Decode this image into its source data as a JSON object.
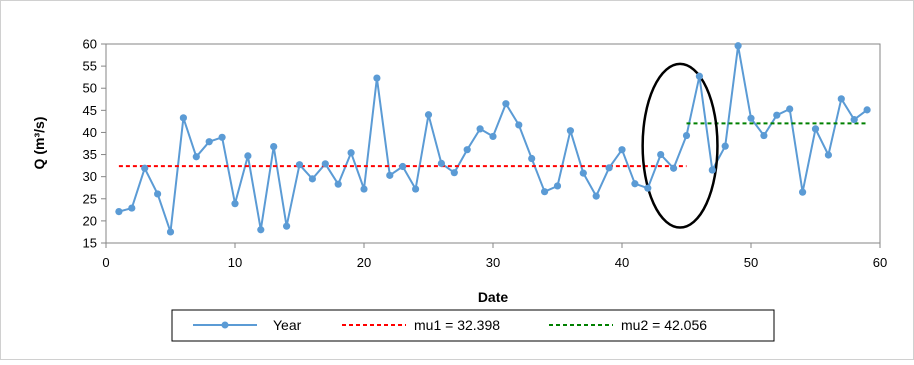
{
  "chart_data": {
    "type": "line",
    "xlabel": "Date",
    "ylabel": "Q (m³/s)",
    "xlim": [
      0,
      60
    ],
    "ylim": [
      15,
      60
    ],
    "x_ticks": [
      0,
      10,
      20,
      30,
      40,
      50,
      60
    ],
    "y_ticks": [
      15,
      20,
      25,
      30,
      35,
      40,
      45,
      50,
      55,
      60
    ],
    "grid": false,
    "legend_position": "bottom",
    "series": [
      {
        "name": "Year",
        "style": "line-markers",
        "color": "#5b9bd5",
        "x": [
          1,
          2,
          3,
          4,
          5,
          6,
          7,
          8,
          9,
          10,
          11,
          12,
          13,
          14,
          15,
          16,
          17,
          18,
          19,
          20,
          21,
          22,
          23,
          24,
          25,
          26,
          27,
          28,
          29,
          30,
          31,
          32,
          33,
          34,
          35,
          36,
          37,
          38,
          39,
          40,
          41,
          42,
          43,
          44,
          45,
          46,
          47,
          48,
          49,
          50,
          51,
          52,
          53,
          54,
          55,
          56,
          57,
          58,
          59
        ],
        "y": [
          22.1,
          22.9,
          31.9,
          26.1,
          17.5,
          43.3,
          34.5,
          37.9,
          38.9,
          23.9,
          34.7,
          18.0,
          36.8,
          18.8,
          32.7,
          29.5,
          32.9,
          28.3,
          35.4,
          27.2,
          52.3,
          30.3,
          32.3,
          27.2,
          44.0,
          33.0,
          30.9,
          36.1,
          40.8,
          39.1,
          46.5,
          41.7,
          34.1,
          26.6,
          27.9,
          40.4,
          30.8,
          25.6,
          32.0,
          36.1,
          28.4,
          27.4,
          35.0,
          31.9,
          39.3,
          52.7,
          31.5,
          36.9,
          59.6,
          43.2,
          39.3,
          43.9,
          45.3,
          26.5,
          40.8,
          34.9,
          47.6,
          42.9,
          45.1
        ]
      },
      {
        "name": "mu1 = 32.398",
        "style": "dashed",
        "color": "#ff0000",
        "x": [
          1,
          45
        ],
        "y": [
          32.398,
          32.398
        ]
      },
      {
        "name": "mu2 = 42.056",
        "style": "dashed",
        "color": "#008000",
        "x": [
          45,
          59
        ],
        "y": [
          42.056,
          42.056
        ]
      }
    ],
    "annotations": [
      {
        "type": "ellipse",
        "color": "#000000",
        "center_x": 44.5,
        "center_y": 37,
        "span_x": 5.8,
        "span_y": 37
      }
    ]
  }
}
